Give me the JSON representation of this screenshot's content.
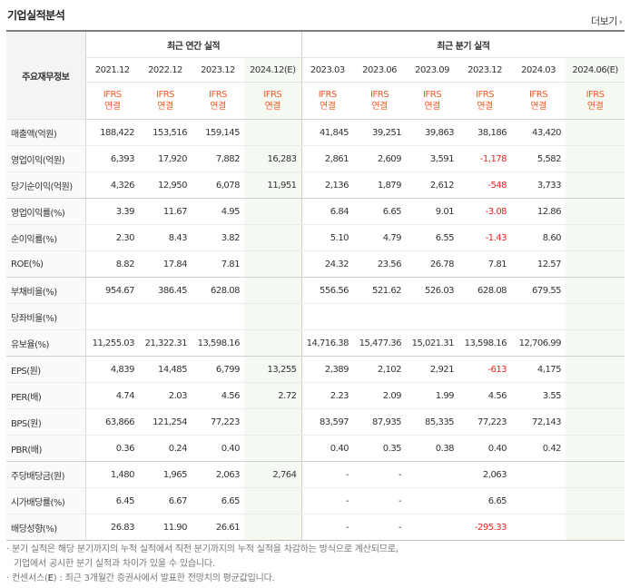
{
  "header": {
    "title": "기업실적분석",
    "more_label": "더보기",
    "more_arrow": "›"
  },
  "table": {
    "row_header_label": "주요재무정보",
    "group_annual": "최근 연간 실적",
    "group_quarter": "최근 분기 실적",
    "periods": [
      "2021.12",
      "2022.12",
      "2023.12",
      "2024.12(E)",
      "2023.03",
      "2023.06",
      "2023.09",
      "2023.12",
      "2024.03",
      "2024.06(E)"
    ],
    "standard": [
      "IFRS",
      "IFRS",
      "IFRS",
      "IFRS",
      "IFRS",
      "IFRS",
      "IFRS",
      "IFRS",
      "IFRS",
      "IFRS"
    ],
    "consolidation": [
      "연결",
      "연결",
      "연결",
      "연결",
      "연결",
      "연결",
      "연결",
      "연결",
      "연결",
      "연결"
    ],
    "rows": [
      {
        "label": "매출액(억원)",
        "values": [
          "188,422",
          "153,516",
          "159,145",
          "",
          "41,845",
          "39,251",
          "39,863",
          "38,186",
          "43,420",
          ""
        ]
      },
      {
        "label": "영업이익(억원)",
        "values": [
          "6,393",
          "17,920",
          "7,882",
          "16,283",
          "2,861",
          "2,609",
          "3,591",
          "-1,178",
          "5,582",
          ""
        ]
      },
      {
        "label": "당기순이익(억원)",
        "values": [
          "4,326",
          "12,950",
          "6,078",
          "11,951",
          "2,136",
          "1,879",
          "2,612",
          "-548",
          "3,733",
          ""
        ]
      },
      {
        "label": "영업이익률(%)",
        "values": [
          "3.39",
          "11.67",
          "4.95",
          "",
          "6.84",
          "6.65",
          "9.01",
          "-3.08",
          "12.86",
          ""
        ]
      },
      {
        "label": "순이익률(%)",
        "values": [
          "2.30",
          "8.43",
          "3.82",
          "",
          "5.10",
          "4.79",
          "6.55",
          "-1.43",
          "8.60",
          ""
        ]
      },
      {
        "label": "ROE(%)",
        "values": [
          "8.82",
          "17.84",
          "7.81",
          "",
          "24.32",
          "23.56",
          "26.78",
          "7.81",
          "12.57",
          ""
        ]
      },
      {
        "label": "부채비율(%)",
        "values": [
          "954.67",
          "386.45",
          "628.08",
          "",
          "556.56",
          "521.62",
          "526.03",
          "628.08",
          "679.55",
          ""
        ]
      },
      {
        "label": "당좌비율(%)",
        "values": [
          "",
          "",
          "",
          "",
          "",
          "",
          "",
          "",
          "",
          ""
        ]
      },
      {
        "label": "유보율(%)",
        "values": [
          "11,255.03",
          "21,322.31",
          "13,598.16",
          "",
          "14,716.38",
          "15,477.36",
          "15,021.31",
          "13,598.16",
          "12,706.99",
          ""
        ]
      },
      {
        "label": "EPS(원)",
        "values": [
          "4,839",
          "14,485",
          "6,799",
          "13,255",
          "2,389",
          "2,102",
          "2,921",
          "-613",
          "4,175",
          ""
        ]
      },
      {
        "label": "PER(배)",
        "values": [
          "4.74",
          "2.03",
          "4.56",
          "2.72",
          "2.23",
          "2.09",
          "1.99",
          "4.56",
          "3.55",
          ""
        ]
      },
      {
        "label": "BPS(원)",
        "values": [
          "63,866",
          "121,254",
          "77,223",
          "",
          "83,597",
          "87,935",
          "85,335",
          "77,223",
          "72,143",
          ""
        ]
      },
      {
        "label": "PBR(배)",
        "values": [
          "0.36",
          "0.24",
          "0.40",
          "",
          "0.40",
          "0.35",
          "0.38",
          "0.40",
          "0.42",
          ""
        ]
      },
      {
        "label": "주당배당금(원)",
        "values": [
          "1,480",
          "1,965",
          "2,063",
          "2,764",
          "-",
          "-",
          "",
          "2,063",
          "",
          ""
        ]
      },
      {
        "label": "시가배당률(%)",
        "values": [
          "6.45",
          "6.67",
          "6.65",
          "",
          "-",
          "-",
          "",
          "6.65",
          "",
          ""
        ]
      },
      {
        "label": "배당성향(%)",
        "values": [
          "26.83",
          "11.90",
          "26.61",
          "",
          "-",
          "-",
          "",
          "-295.33",
          "",
          ""
        ]
      }
    ]
  },
  "notes": {
    "line1": "· 분기 실적은 해당 분기까지의 누적 실적에서 직전 분기까지의 누적 실적을 차감하는 방식으로 계산되므로,",
    "line2": "기업에서 공시한 분기 실적과 차이가 있을 수 있습니다.",
    "line3_prefix": "· 컨센서스(",
    "line3_e": "E",
    "line3_suffix": ") : 최근 3개월간 증권사에서 발표한 전망치의 평균값입니다."
  },
  "colors": {
    "ifrs": "#f05a24",
    "negative": "#ee2222",
    "estimate_bg": "#f4f9f1"
  }
}
